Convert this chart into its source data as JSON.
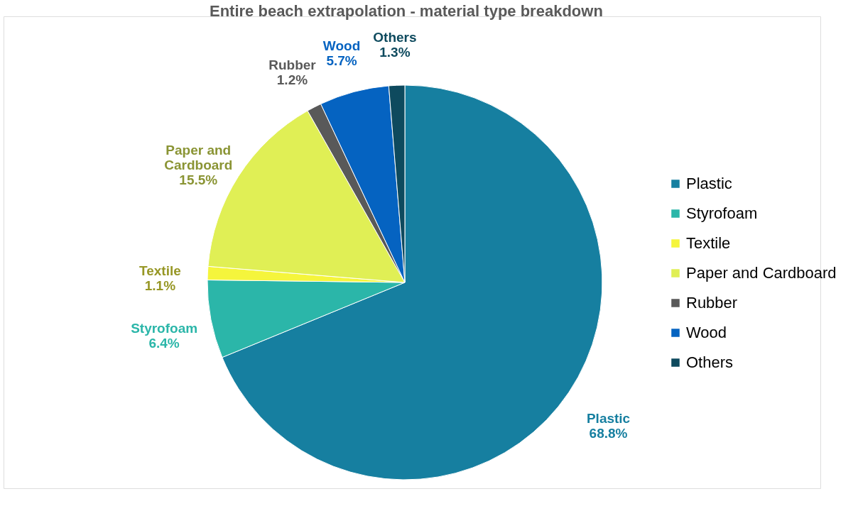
{
  "chart_data": {
    "type": "pie",
    "title": "Entire beach extrapolation - material type breakdown",
    "categories": [
      "Plastic",
      "Styrofoam",
      "Textile",
      "Paper and Cardboard",
      "Rubber",
      "Wood",
      "Others"
    ],
    "values": [
      68.8,
      6.4,
      1.1,
      15.5,
      1.2,
      5.7,
      1.3
    ],
    "value_labels": [
      "68.8%",
      "6.4%",
      "1.1%",
      "15.5%",
      "1.2%",
      "5.7%",
      "1.3%"
    ],
    "colors": [
      "#167fa0",
      "#2bb6a9",
      "#f5f53c",
      "#e0ef55",
      "#595959",
      "#0563c1",
      "#0e4a5e"
    ],
    "legend": "right"
  }
}
